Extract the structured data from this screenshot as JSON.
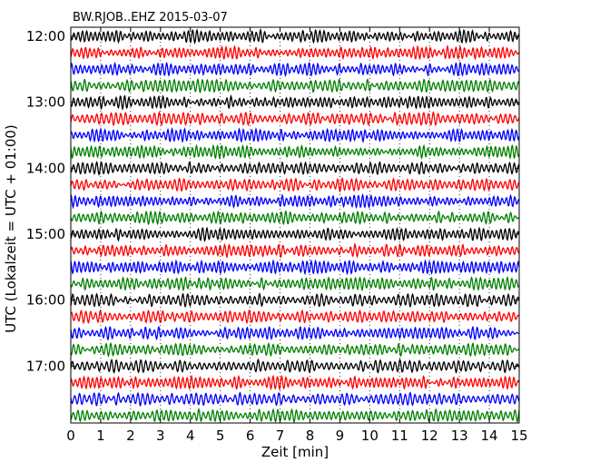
{
  "chart_data": {
    "type": "line",
    "title": "BW.RJOB..EHZ 2015-03-07",
    "xlabel": "Zeit  [min]",
    "ylabel": "UTC (Lokalzeit = UTC + 01:00)",
    "x_ticks": [
      0,
      1,
      2,
      3,
      4,
      5,
      6,
      7,
      8,
      9,
      10,
      11,
      12,
      13,
      14,
      15
    ],
    "xlim": [
      0,
      15
    ],
    "hour_labels": [
      "12:00",
      "13:00",
      "14:00",
      "15:00",
      "16:00",
      "17:00"
    ],
    "traces_per_hour": 4,
    "trace_count": 24,
    "trace_colors": [
      "#000000",
      "#ff0000",
      "#0000ff",
      "#008000"
    ],
    "grid": true
  }
}
